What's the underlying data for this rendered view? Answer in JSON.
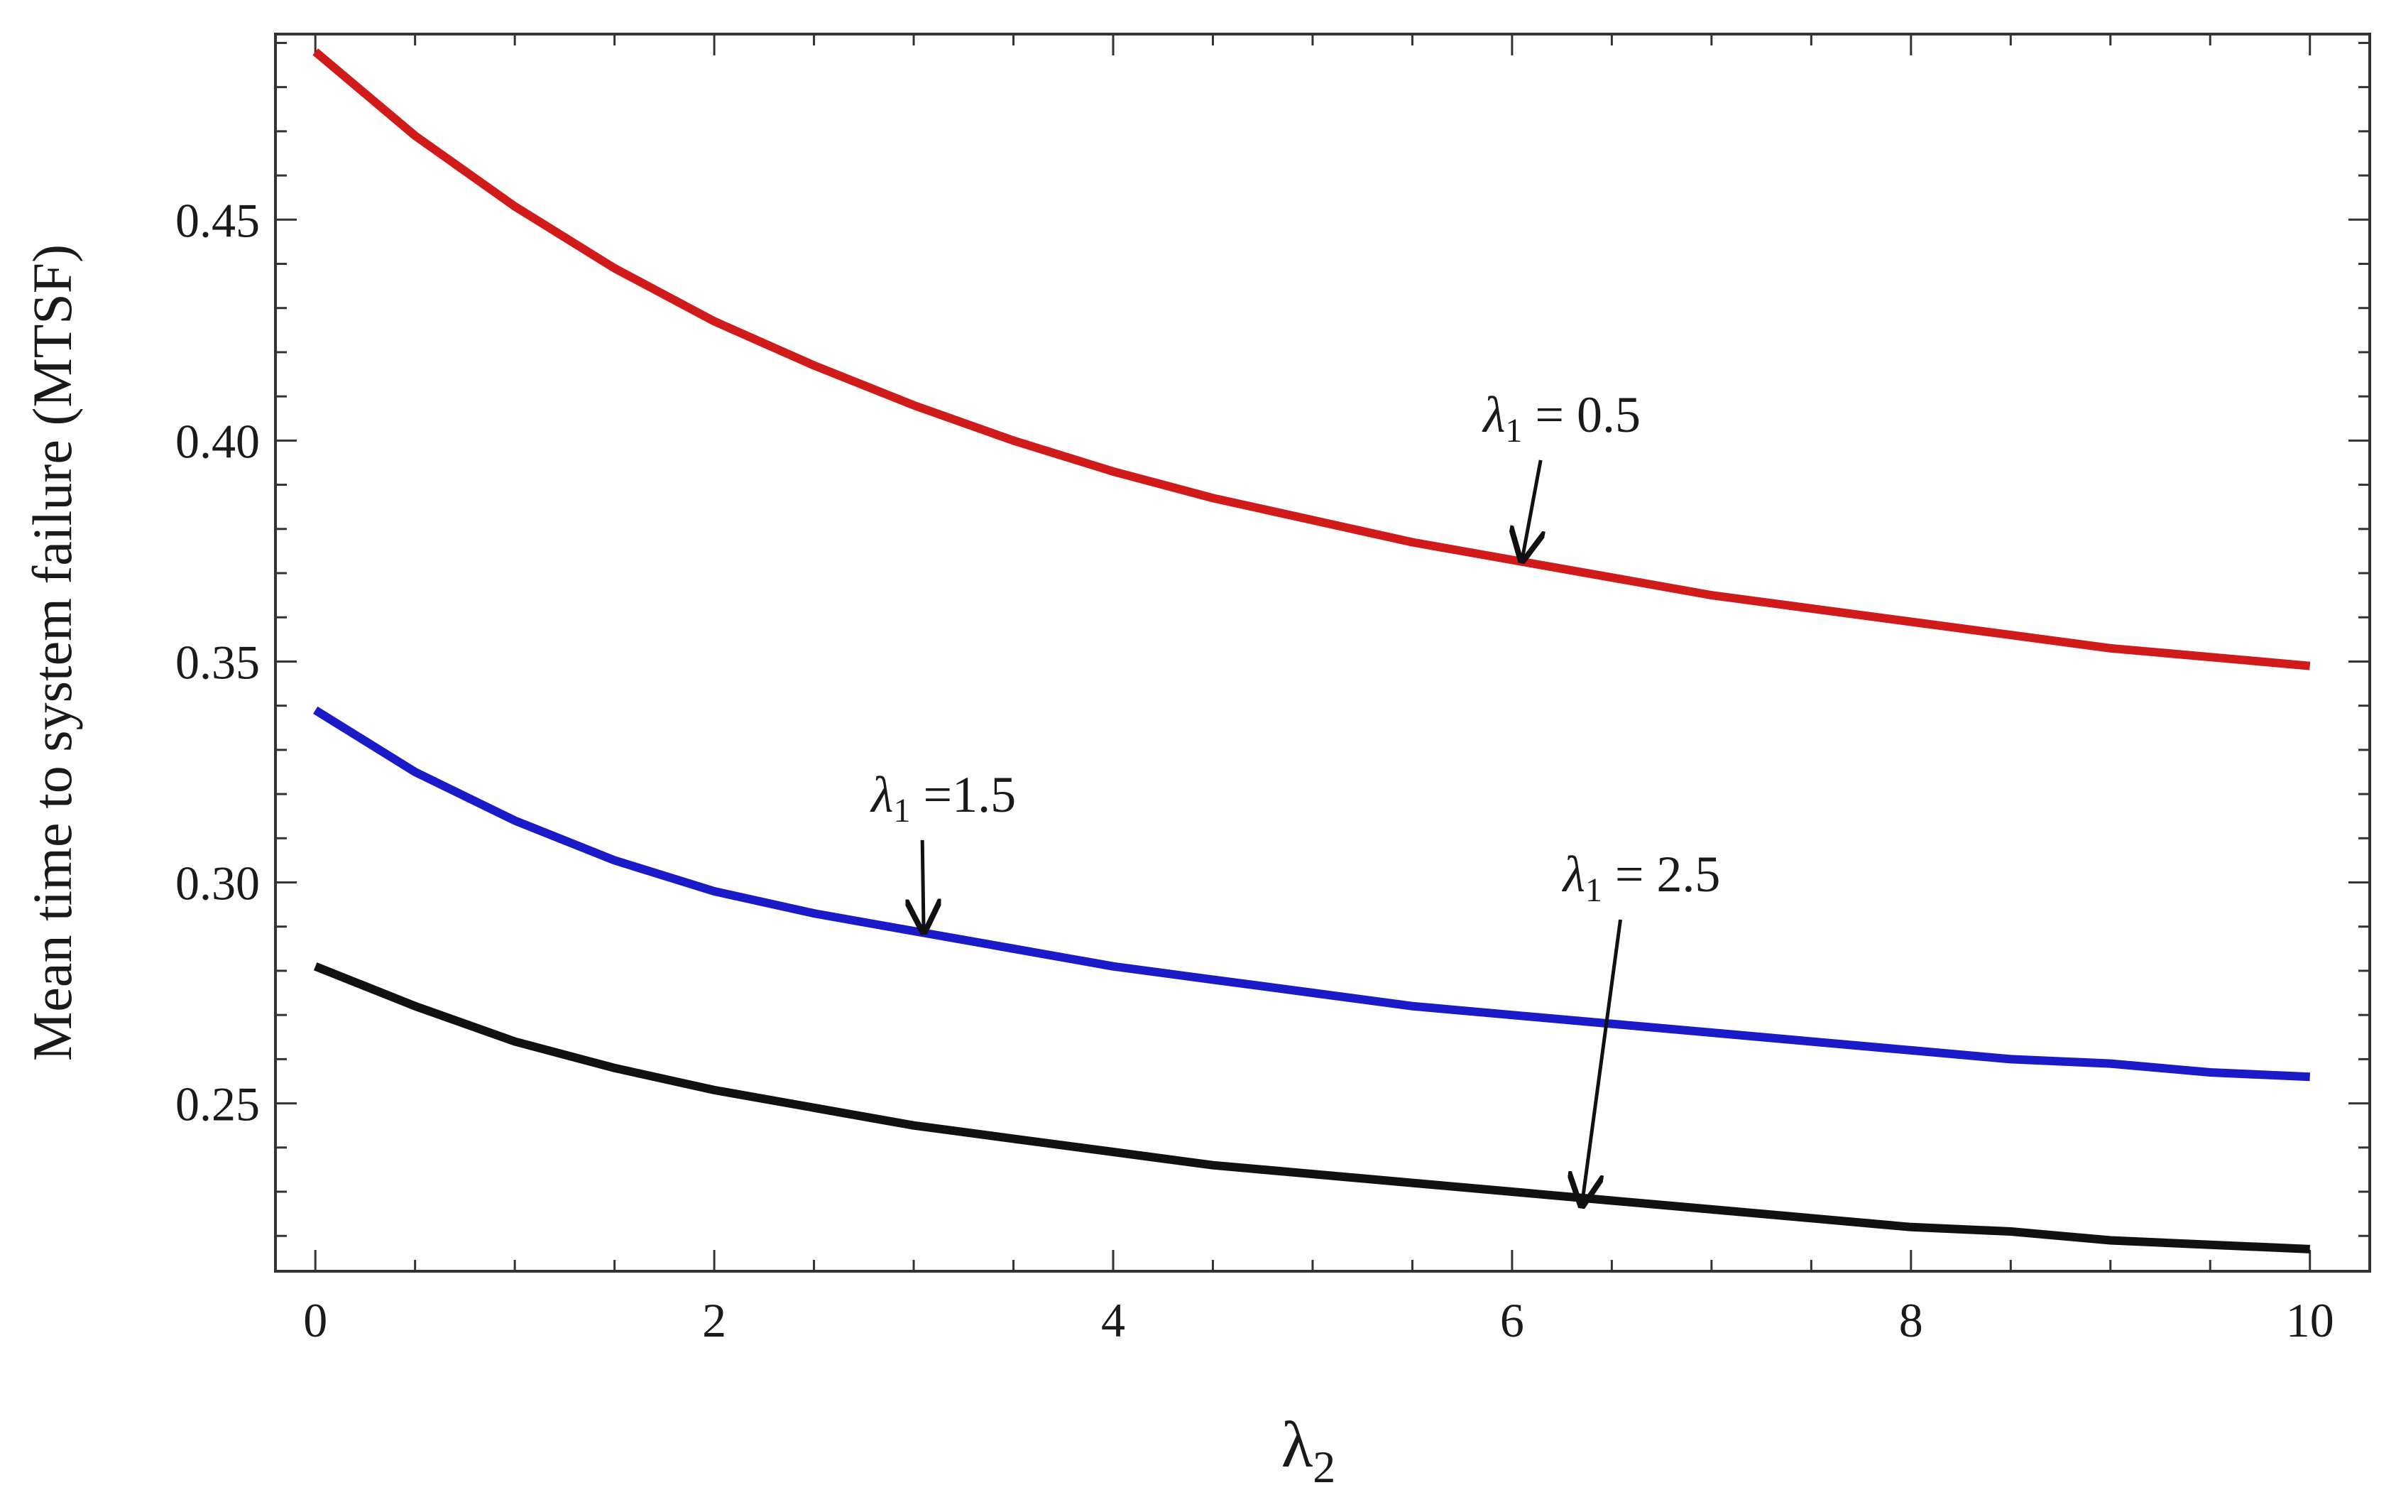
{
  "chart_data": {
    "type": "line",
    "title": "",
    "xlabel": "λ2",
    "xlabel_main": "λ",
    "xlabel_sub": "2",
    "ylabel": "Mean time to system failure (MTSF)",
    "xlim": [
      -0.2,
      10.3
    ],
    "ylim": [
      0.212,
      0.492
    ],
    "grid": false,
    "x_ticks": [
      0,
      2,
      4,
      6,
      8,
      10
    ],
    "x_tick_labels": [
      "0",
      "2",
      "4",
      "6",
      "8",
      "10"
    ],
    "y_ticks": [
      0.25,
      0.3,
      0.35,
      0.4,
      0.45
    ],
    "y_tick_labels": [
      "0.25",
      "0.30",
      "0.35",
      "0.40",
      "0.45"
    ],
    "x_minor_step": 0.5,
    "y_minor_step": 0.01,
    "x": [
      0,
      0.5,
      1,
      1.5,
      2,
      2.5,
      3,
      3.5,
      4,
      4.5,
      5,
      5.5,
      6,
      6.5,
      7,
      7.5,
      8,
      8.5,
      9,
      9.5,
      10
    ],
    "series": [
      {
        "color": "#d11a1a",
        "values": [
          0.488,
          0.469,
          0.453,
          0.439,
          0.427,
          0.417,
          0.408,
          0.4,
          0.393,
          0.387,
          0.382,
          0.377,
          0.373,
          0.369,
          0.365,
          0.362,
          0.359,
          0.356,
          0.353,
          0.351,
          0.349
        ]
      },
      {
        "color": "#1a1ac8",
        "values": [
          0.339,
          0.325,
          0.314,
          0.305,
          0.298,
          0.293,
          0.289,
          0.285,
          0.281,
          0.278,
          0.275,
          0.272,
          0.27,
          0.268,
          0.266,
          0.264,
          0.262,
          0.26,
          0.259,
          0.257,
          0.256
        ]
      },
      {
        "color": "#111111",
        "values": [
          0.281,
          0.272,
          0.264,
          0.258,
          0.253,
          0.249,
          0.245,
          0.242,
          0.239,
          0.236,
          0.234,
          0.232,
          0.23,
          0.228,
          0.226,
          0.224,
          0.222,
          0.221,
          0.219,
          0.218,
          0.217
        ]
      }
    ],
    "annotations": [
      {
        "sym": "λ",
        "sub": "1",
        "rest": " = 0.5",
        "label": "λ1 = 0.5",
        "target": [
          6.05,
          0.373
        ],
        "text_at": [
          6.25,
          0.402
        ]
      },
      {
        "sym": "λ",
        "sub": "1",
        "rest": " =1.5",
        "label": "λ1 = 1.5",
        "target": [
          3.05,
          0.289
        ],
        "text_at": [
          3.15,
          0.316
        ]
      },
      {
        "sym": "λ",
        "sub": "1",
        "rest": " = 2.5",
        "label": "λ1 = 2.5",
        "target": [
          6.35,
          0.227
        ],
        "text_at": [
          6.65,
          0.298
        ]
      }
    ]
  }
}
